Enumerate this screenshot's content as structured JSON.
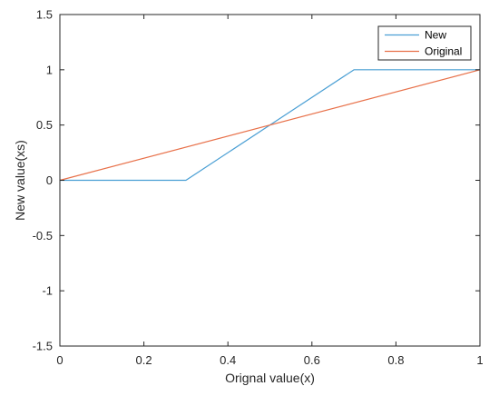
{
  "chart_data": {
    "type": "line",
    "title": "",
    "xlabel": "Orignal value(x)",
    "ylabel": "New value(xs)",
    "xlim": [
      0,
      1
    ],
    "ylim": [
      -1.5,
      1.5
    ],
    "x_ticks": [
      "0",
      "0.2",
      "0.4",
      "0.6",
      "0.8",
      "1"
    ],
    "x_tick_values": [
      0,
      0.2,
      0.4,
      0.6,
      0.8,
      1
    ],
    "y_ticks": [
      "1.5",
      "1",
      "0.5",
      "0",
      "-0.5",
      "-1",
      "-1.5"
    ],
    "y_tick_values": [
      1.5,
      1,
      0.5,
      0,
      -0.5,
      -1,
      -1.5
    ],
    "grid": false,
    "legend_position": "top-right",
    "series": [
      {
        "name": "New",
        "color": "#4a9fd4",
        "x": [
          0,
          0.3,
          0.7,
          1
        ],
        "y": [
          0,
          0,
          1,
          1
        ]
      },
      {
        "name": "Original",
        "color": "#e8714a",
        "x": [
          0,
          1
        ],
        "y": [
          0,
          1
        ]
      }
    ]
  }
}
